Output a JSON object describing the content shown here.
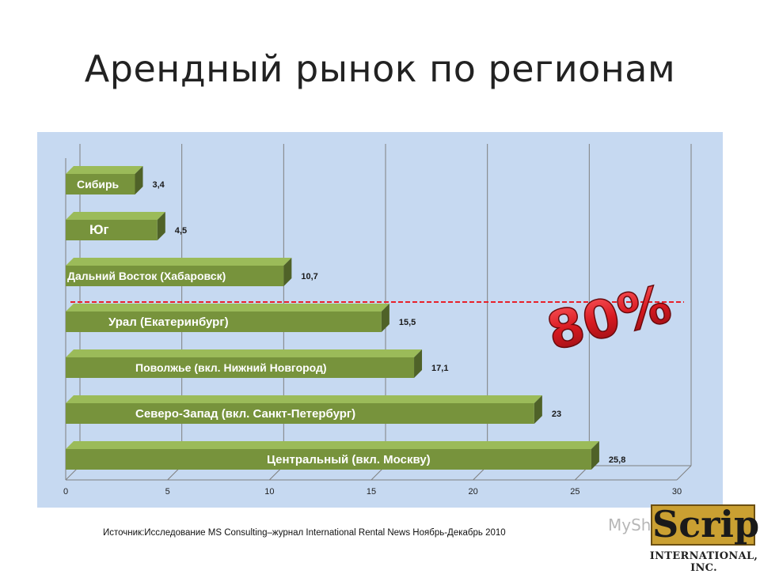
{
  "slide": {
    "title": "Арендный рынок по регионам",
    "source": "Источник:Исследование MS Consulting–журнал International Rental News Ноябрь-Декабрь 2010",
    "logo_text": "Script",
    "logo_subtext": "INTERNATIONAL, INC.",
    "watermark_text": "MyShared",
    "annotation_text": "80%"
  },
  "colors": {
    "plot_background": "#c6d9f1",
    "bar_front": "#77933c",
    "bar_top": "#9bbb59",
    "bar_side": "#4f6228",
    "dashed_line": "#e8212a",
    "annotation_fill": "#d71920"
  },
  "chart_data": {
    "type": "bar",
    "orientation": "horizontal",
    "style": "3d",
    "categories": [
      "Сибирь",
      "Юг",
      "Дальний Восток (Хабаровск)",
      "Урал (Екатеринбург)",
      "Поволжье (вкл. Нижний Новгород)",
      "Северо-Запад (вкл. Санкт-Петербург)",
      "Центральный (вкл. Москву)"
    ],
    "values": [
      3.4,
      4.5,
      10.7,
      15.5,
      17.1,
      23,
      25.8
    ],
    "value_labels": [
      "3,4",
      "4,5",
      "10,7",
      "15,5",
      "17,1",
      "23",
      "25,8"
    ],
    "xlim": [
      0,
      30
    ],
    "x_ticks": [
      0,
      5,
      10,
      15,
      20,
      25,
      30
    ],
    "grid": "vertical",
    "legend": "none",
    "annotation": {
      "text": "80%",
      "divider": "dashed line between Дальний Восток and Урал"
    }
  }
}
